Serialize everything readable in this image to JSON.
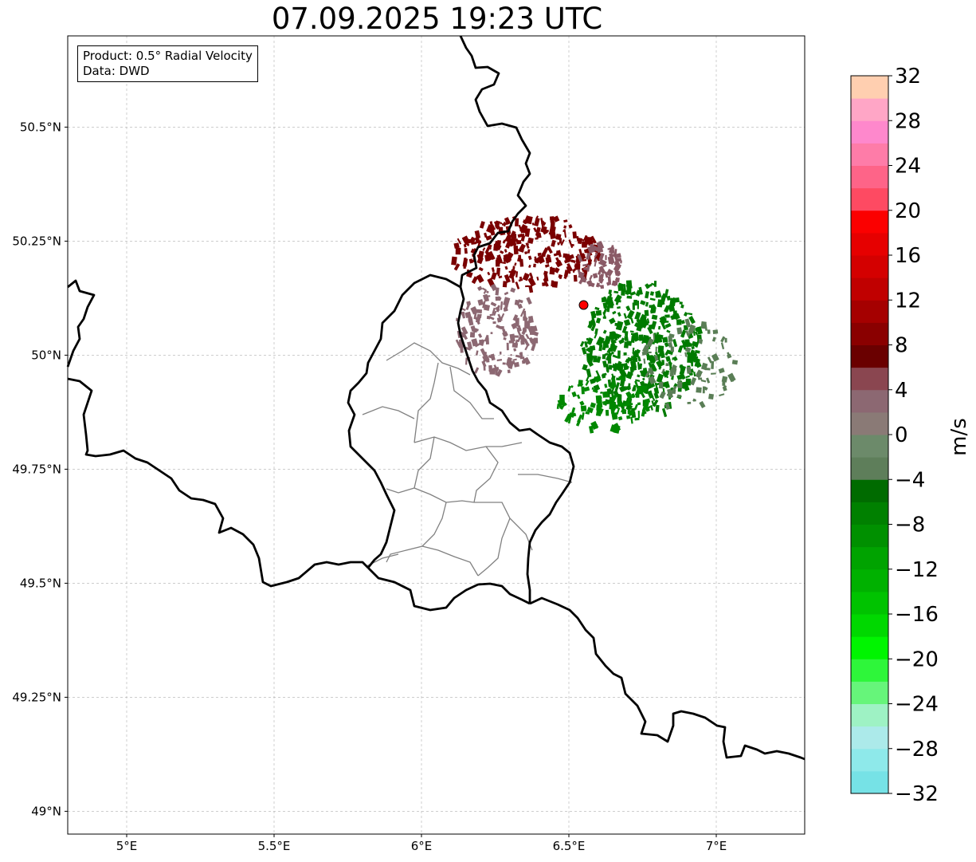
{
  "title": "07.09.2025 19:23 UTC",
  "info": {
    "product": "Product: 0.5° Radial Velocity",
    "data": "Data: DWD"
  },
  "map": {
    "lon_range": [
      4.8,
      7.3
    ],
    "lat_range": [
      48.95,
      50.7
    ],
    "lon_ticks": [
      {
        "v": 5.0,
        "label": "5°E"
      },
      {
        "v": 5.5,
        "label": "5.5°E"
      },
      {
        "v": 6.0,
        "label": "6°E"
      },
      {
        "v": 6.5,
        "label": "6.5°E"
      },
      {
        "v": 7.0,
        "label": "7°E"
      }
    ],
    "lat_ticks": [
      {
        "v": 49.0,
        "label": "49°N"
      },
      {
        "v": 49.25,
        "label": "49.25°N"
      },
      {
        "v": 49.5,
        "label": "49.5°N"
      },
      {
        "v": 49.75,
        "label": "49.75°N"
      },
      {
        "v": 50.0,
        "label": "50°N"
      },
      {
        "v": 50.25,
        "label": "50.25°N"
      },
      {
        "v": 50.5,
        "label": "50.5°N"
      }
    ],
    "grid": true,
    "radar_site": {
      "lon": 6.55,
      "lat": 50.11,
      "color": "#ff0000"
    }
  },
  "colorbar": {
    "label": "m/s",
    "min": -32,
    "max": 32,
    "ticks": [
      {
        "v": -32,
        "label": "−32"
      },
      {
        "v": -28,
        "label": "−28"
      },
      {
        "v": -24,
        "label": "−24"
      },
      {
        "v": -20,
        "label": "−20"
      },
      {
        "v": -16,
        "label": "−16"
      },
      {
        "v": -12,
        "label": "−12"
      },
      {
        "v": -8,
        "label": "−8"
      },
      {
        "v": -4,
        "label": "−4"
      },
      {
        "v": 0,
        "label": "0"
      },
      {
        "v": 4,
        "label": "4"
      },
      {
        "v": 8,
        "label": "8"
      },
      {
        "v": 12,
        "label": "12"
      },
      {
        "v": 16,
        "label": "16"
      },
      {
        "v": 20,
        "label": "20"
      },
      {
        "v": 24,
        "label": "24"
      },
      {
        "v": 28,
        "label": "28"
      },
      {
        "v": 32,
        "label": "32"
      }
    ],
    "colors": [
      "#76e2e6",
      "#8ee9ea",
      "#aceaea",
      "#9ef2c4",
      "#66f57a",
      "#2ef63a",
      "#00f500",
      "#00d800",
      "#00c300",
      "#00b100",
      "#00a300",
      "#009000",
      "#008000",
      "#006b00",
      "#5e7e5a",
      "#6c8a6a",
      "#8a7a76",
      "#8c6872",
      "#8a4650",
      "#6a0000",
      "#8a0000",
      "#a50000",
      "#c00000",
      "#d40000",
      "#e60000",
      "#fb0000",
      "#fe4a62",
      "#fe6488",
      "#fe7ca8",
      "#fe88cc",
      "#ffa6c6",
      "#ffcfb0"
    ]
  },
  "echo_regions": [
    {
      "name": "inbound-green",
      "color": "#007a00",
      "lon": 6.74,
      "lat": 50.02,
      "rx": 0.2,
      "ry": 0.15,
      "count": 420
    },
    {
      "name": "inbound-green-south",
      "color": "#008800",
      "lon": 6.62,
      "lat": 49.9,
      "rx": 0.16,
      "ry": 0.06,
      "count": 90
    },
    {
      "name": "inbound-grey-green",
      "color": "#5a7e56",
      "lon": 6.9,
      "lat": 49.98,
      "rx": 0.16,
      "ry": 0.1,
      "count": 80
    },
    {
      "name": "outbound-darkred",
      "color": "#7a0000",
      "lon": 6.35,
      "lat": 50.23,
      "rx": 0.25,
      "ry": 0.08,
      "count": 260
    },
    {
      "name": "outbound-mauve",
      "color": "#8c6872",
      "lon": 6.25,
      "lat": 50.06,
      "rx": 0.14,
      "ry": 0.1,
      "count": 160
    },
    {
      "name": "outbound-mauve-north",
      "color": "#8a5a66",
      "lon": 6.6,
      "lat": 50.2,
      "rx": 0.08,
      "ry": 0.05,
      "count": 70
    }
  ]
}
